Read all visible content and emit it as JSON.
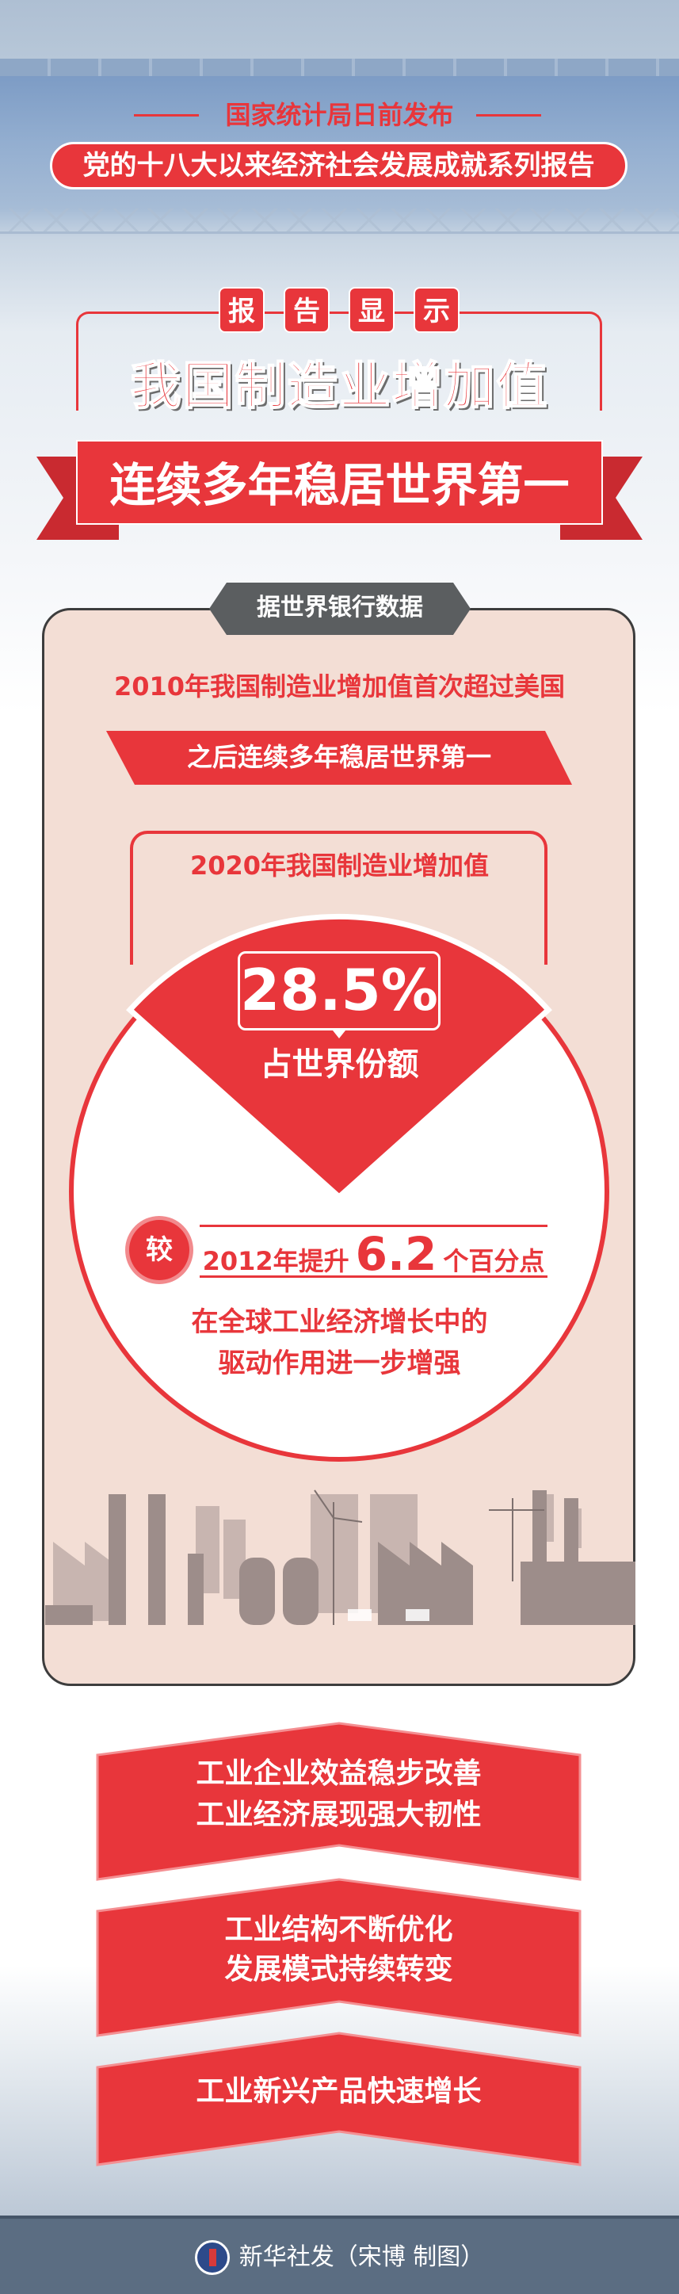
{
  "header": {
    "publisher_line": "国家统计局日前发布",
    "series_title": "党的十八大以来经济社会发展成就系列报告",
    "report_shows": [
      "报",
      "告",
      "显",
      "示"
    ],
    "main_title": "我国制造业增加值",
    "ribbon_title": "连续多年稳居世界第一"
  },
  "card": {
    "source_tab": "据世界银行数据",
    "line_2010": "2010年我国制造业增加值首次超过美国",
    "banner": "之后连续多年稳居世界第一",
    "title_2020": "2020年我国制造业增加值",
    "share_value": "28.5%",
    "share_label": "占世界份额",
    "compare_badge": "较",
    "compare_prefix": "2012年提升",
    "compare_value": "6.2",
    "compare_suffix": "个百分点",
    "drive_line1": "在全球工业经济增长中的",
    "drive_line2": "驱动作用进一步增强"
  },
  "chevrons": [
    {
      "lines": [
        "工业企业效益稳步改善",
        "工业经济展现强大韧性"
      ]
    },
    {
      "lines": [
        "工业结构不断优化",
        "发展模式持续转变"
      ]
    },
    {
      "lines": [
        "工业新兴产品快速增长"
      ]
    }
  ],
  "footer": {
    "credit": "新华社发（宋博 制图）"
  },
  "colors": {
    "accent_red": "#e8363b",
    "card_bg": "#f3ded5",
    "tab_gray": "#5b5e60",
    "footer_bg": "#5b6d82"
  }
}
